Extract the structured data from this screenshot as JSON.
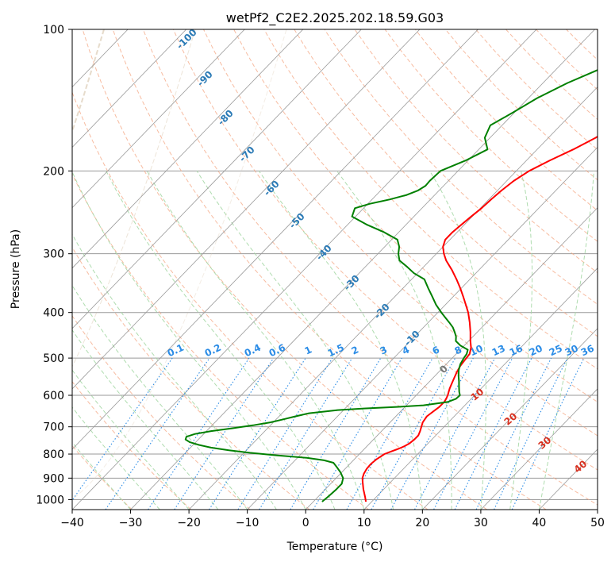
{
  "chart_data": {
    "type": "line",
    "diagram": "skew-T log-P",
    "title": "wetPf2_C2E2.2025.202.18.59.G03",
    "xlabel": "Temperature (°C)",
    "ylabel": "Pressure (hPa)",
    "xlim": [
      -40,
      50
    ],
    "ylim": [
      1050,
      100
    ],
    "y_scale": "log",
    "x_ticks": [
      -40,
      -30,
      -20,
      -10,
      0,
      10,
      20,
      30,
      40,
      50
    ],
    "x_tick_labels": [
      "−40",
      "−30",
      "−20",
      "−10",
      "0",
      "10",
      "20",
      "30",
      "40",
      "50"
    ],
    "y_ticks": [
      100,
      200,
      300,
      400,
      500,
      600,
      700,
      800,
      900,
      1000
    ],
    "y_tick_labels": [
      "100",
      "200",
      "300",
      "400",
      "500",
      "600",
      "700",
      "800",
      "900",
      "1000"
    ],
    "grid": true,
    "colors": {
      "temperature": "#ff0000",
      "dewpoint": "#008000",
      "isotherms": "#9a9a9a",
      "dry_adiabats": "#f4a582",
      "moist_adiabats": "#a6d8a6",
      "mixing_ratio": "#2b8ce6",
      "wet_bulb_isotherms": "#d6c3a8",
      "isotherm_labels": "#2c7bb6",
      "dry_adiabat_labels": "#d7301f",
      "zero_label": "#777777"
    },
    "series": [
      {
        "key": "temperature",
        "pressure": [
          1010,
          985,
          950,
          920,
          900,
          880,
          860,
          840,
          820,
          800,
          790,
          780,
          770,
          760,
          745,
          730,
          715,
          700,
          685,
          665,
          650,
          635,
          620,
          610,
          600,
          590,
          580,
          565,
          550,
          535,
          520,
          505,
          490,
          475,
          460,
          440,
          420,
          400,
          385,
          370,
          355,
          340,
          325,
          310,
          300,
          290,
          280,
          270,
          260,
          250,
          240,
          230,
          220,
          210,
          200,
          190,
          180,
          170,
          160,
          150,
          140,
          130,
          125,
          120,
          115,
          110,
          105,
          100
        ],
        "temp": [
          9.0,
          8.0,
          6.5,
          5.3,
          4.5,
          4.0,
          3.7,
          3.6,
          3.8,
          4.3,
          5.0,
          5.8,
          6.4,
          6.8,
          7.0,
          7.0,
          6.6,
          6.1,
          5.6,
          5.3,
          5.6,
          5.9,
          5.9,
          5.7,
          5.4,
          5.0,
          4.6,
          4.1,
          3.6,
          3.1,
          2.7,
          2.5,
          2.3,
          1.5,
          0.3,
          -1.2,
          -2.9,
          -4.8,
          -6.5,
          -8.3,
          -10.2,
          -12.3,
          -14.6,
          -17.2,
          -18.7,
          -20.0,
          -20.8,
          -20.8,
          -20.5,
          -20.2,
          -19.8,
          -19.6,
          -19.3,
          -18.8,
          -17.8,
          -16.0,
          -13.8,
          -11.9,
          -10.5,
          -9.7,
          -9.0,
          -8.0,
          -7.2,
          -6.6,
          -6.1,
          -5.7,
          -5.3,
          -4.8
        ]
      },
      {
        "key": "dewpoint",
        "pressure": [
          1010,
          985,
          950,
          925,
          900,
          875,
          850,
          835,
          825,
          815,
          805,
          795,
          785,
          775,
          765,
          755,
          745,
          735,
          725,
          715,
          705,
          695,
          685,
          675,
          665,
          655,
          645,
          640,
          635,
          630,
          620,
          610,
          600,
          590,
          575,
          560,
          545,
          530,
          515,
          500,
          490,
          480,
          470,
          460,
          450,
          440,
          430,
          420,
          410,
          400,
          385,
          370,
          355,
          340,
          330,
          320,
          310,
          300,
          290,
          280,
          270,
          260,
          250,
          240,
          235,
          230,
          225,
          220,
          215,
          210,
          200,
          190,
          180,
          170,
          160,
          150,
          140,
          130,
          120,
          110,
          100
        ],
        "temp": [
          1.5,
          1.7,
          1.9,
          1.9,
          1.2,
          -0.2,
          -1.9,
          -3.0,
          -5.0,
          -8.4,
          -14.0,
          -19.0,
          -23.0,
          -26.5,
          -29.0,
          -31.0,
          -32.2,
          -32.5,
          -31.5,
          -29.2,
          -26.0,
          -23.0,
          -20.5,
          -18.8,
          -17.2,
          -15.4,
          -11.0,
          -6.8,
          -1.4,
          2.9,
          6.5,
          7.4,
          7.5,
          6.8,
          5.9,
          5.0,
          4.0,
          3.1,
          2.4,
          2.0,
          1.8,
          1.3,
          -0.7,
          -2.2,
          -2.9,
          -3.9,
          -5.0,
          -6.4,
          -7.9,
          -9.4,
          -11.6,
          -13.6,
          -15.7,
          -17.8,
          -20.6,
          -22.8,
          -25.2,
          -26.5,
          -27.5,
          -29.0,
          -32.5,
          -36.8,
          -40.6,
          -41.5,
          -39.7,
          -37.0,
          -34.8,
          -33.6,
          -33.1,
          -33.2,
          -33.0,
          -30.4,
          -28.5,
          -30.9,
          -32.0,
          -30.2,
          -28.5,
          -25.8,
          -22.0,
          -18.9,
          -15.4
        ]
      }
    ],
    "isotherm_labels": [
      "-100",
      "-90",
      "-80",
      "-70",
      "-60",
      "-50",
      "-40",
      "-30",
      "-20",
      "-10"
    ],
    "mixing_ratio_labels": [
      "0.1",
      "0.2",
      "0.4",
      "0.6",
      "1",
      "1.5",
      "2",
      "3",
      "4",
      "6",
      "8",
      "10",
      "13",
      "16",
      "20",
      "25",
      "30",
      "36"
    ],
    "wet_bulb_label": "0",
    "dry_adiabat_labels": [
      "10",
      "20",
      "30",
      "40"
    ]
  }
}
